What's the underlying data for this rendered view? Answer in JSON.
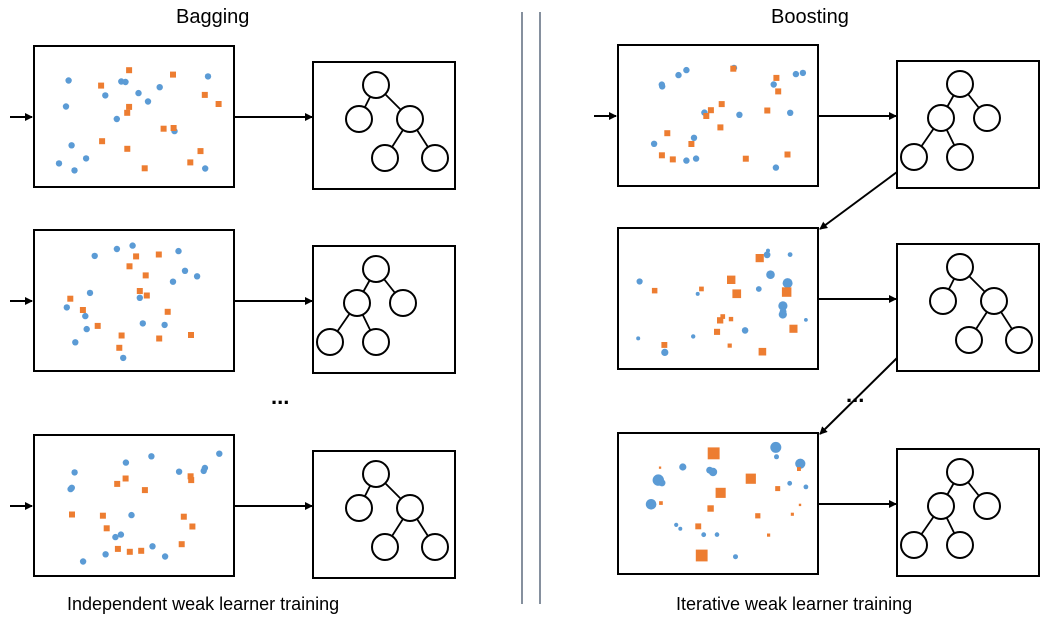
{
  "titles": {
    "left": "Bagging",
    "right": "Boosting"
  },
  "captions": {
    "left": "Independent weak learner training",
    "right": "Iterative weak learner training"
  },
  "ellipsis": "...",
  "colors": {
    "blue": "#5b9bd5",
    "orange": "#ed7d31",
    "line": "#000000",
    "divider": "#44546a"
  }
}
